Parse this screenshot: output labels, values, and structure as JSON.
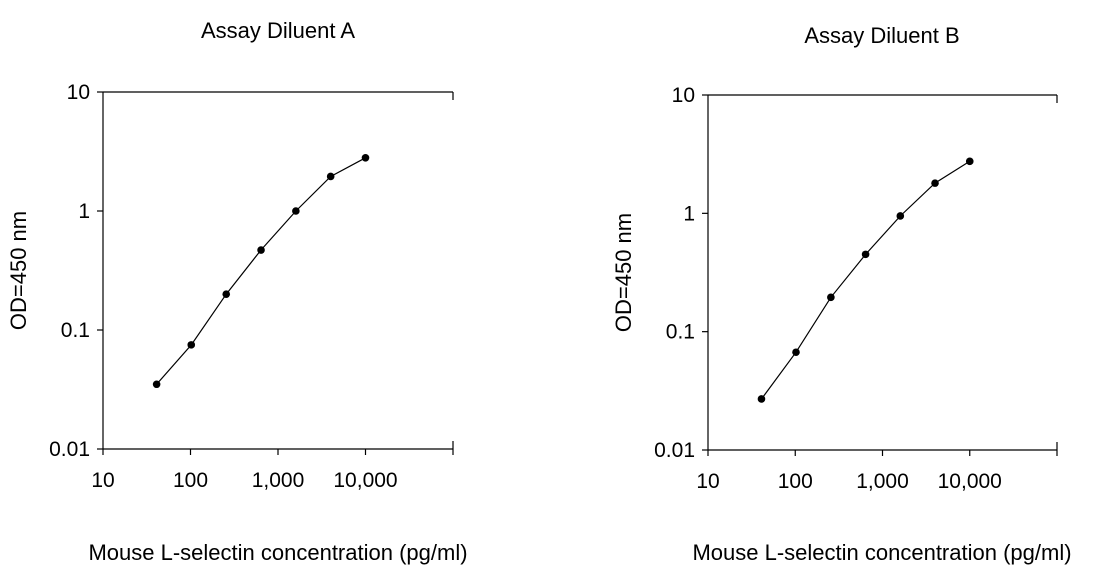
{
  "chart_data": [
    {
      "type": "line",
      "title": "Assay Diluent A",
      "xlabel": "Mouse L-selectin concentration (pg/ml)",
      "ylabel": "OD=450 nm",
      "xscale": "log",
      "yscale": "log",
      "xlim": [
        10,
        100000
      ],
      "ylim": [
        0.01,
        10
      ],
      "xticks": [
        10,
        100,
        1000,
        10000
      ],
      "xtick_labels": [
        "10",
        "100",
        "1,000",
        "10,000"
      ],
      "yticks": [
        0.01,
        0.1,
        1,
        10
      ],
      "ytick_labels": [
        "0.01",
        "0.1",
        "1",
        "10"
      ],
      "grid": false,
      "series": [
        {
          "x": [
            41,
            102,
            256,
            640,
            1600,
            4000,
            10000
          ],
          "y": [
            0.035,
            0.075,
            0.2,
            0.47,
            1.0,
            1.95,
            2.8
          ]
        }
      ]
    },
    {
      "type": "line",
      "title": "Assay Diluent B",
      "xlabel": "Mouse L-selectin concentration (pg/ml)",
      "ylabel": "OD=450 nm",
      "xscale": "log",
      "yscale": "log",
      "xlim": [
        10,
        100000
      ],
      "ylim": [
        0.01,
        10
      ],
      "xticks": [
        10,
        100,
        1000,
        10000
      ],
      "xtick_labels": [
        "10",
        "100",
        "1,000",
        "10,000"
      ],
      "yticks": [
        0.01,
        0.1,
        1,
        10
      ],
      "ytick_labels": [
        "0.01",
        "0.1",
        "1",
        "10"
      ],
      "grid": false,
      "series": [
        {
          "x": [
            41,
            102,
            256,
            640,
            1600,
            4000,
            10000
          ],
          "y": [
            0.027,
            0.067,
            0.195,
            0.45,
            0.95,
            1.8,
            2.75
          ]
        }
      ]
    }
  ]
}
